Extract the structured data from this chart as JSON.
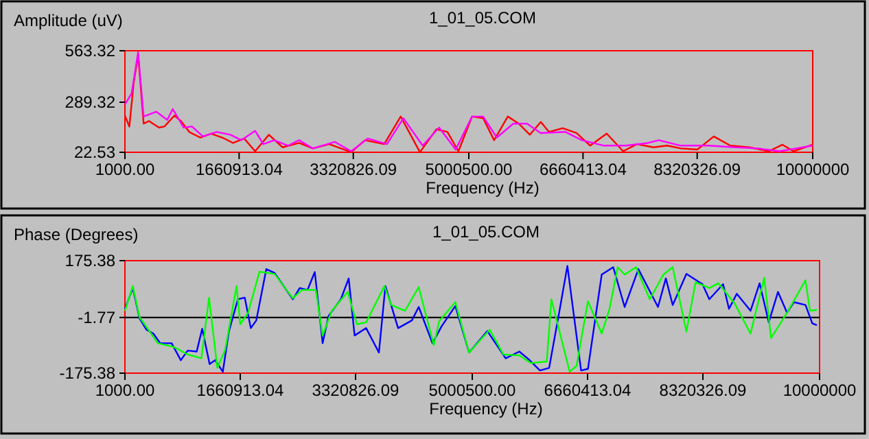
{
  "chart_data": [
    {
      "type": "line",
      "title": "1_01_05.COM",
      "xlabel": "Frequency (Hz)",
      "ylabel": "Amplitude (uV)",
      "xlim": [
        1000,
        10000000
      ],
      "xticks": [
        {
          "value": 1000,
          "label": "1000.00"
        },
        {
          "value": 1660913.04,
          "label": "1660913.04"
        },
        {
          "value": 3320826.09,
          "label": "3320826.09"
        },
        {
          "value": 5000500,
          "label": "5000500.00"
        },
        {
          "value": 6660413.04,
          "label": "6660413.04"
        },
        {
          "value": 8320326.09,
          "label": "8320326.09"
        },
        {
          "value": 10000000,
          "label": "10000000"
        }
      ],
      "ylim": [
        22.53,
        563.32
      ],
      "yticks": [
        22.53,
        289.32,
        563.32
      ],
      "grid": false,
      "marker": "none",
      "line_style": "solid",
      "series": [
        {
          "color": "#ff0000",
          "x": [
            1000,
            65000,
            129000,
            193000,
            273000,
            352000,
            496000,
            576000,
            720000,
            816000,
            935000,
            1095000,
            1255000,
            1415000,
            1574000,
            1734000,
            1894000,
            2093000,
            2293000,
            2533000,
            2732000,
            2972000,
            3291000,
            3491000,
            3770000,
            4010000,
            4290000,
            4529000,
            4689000,
            4849000,
            5048000,
            5208000,
            5368000,
            5567000,
            5727000,
            5887000,
            6047000,
            6166000,
            6366000,
            6566000,
            6765000,
            7005000,
            7244000,
            7444000,
            7684000,
            7883000,
            8083000,
            8322000,
            8562000,
            8802000,
            9081000,
            9361000,
            9560000,
            9720000,
            10000000
          ],
          "values": [
            218,
            159,
            394,
            540,
            175,
            189,
            154,
            160,
            218,
            189,
            131,
            101,
            122,
            101,
            72,
            96,
            28,
            116,
            49,
            72,
            43,
            66,
            23,
            87,
            66,
            213,
            23,
            145,
            131,
            28,
            213,
            204,
            87,
            213,
            175,
            116,
            184,
            131,
            151,
            125,
            58,
            122,
            28,
            66,
            49,
            58,
            43,
            37,
            107,
            58,
            49,
            28,
            63,
            28,
            63
          ]
        },
        {
          "color": "#ff00ff",
          "x": [
            1000,
            97000,
            193000,
            273000,
            456000,
            616000,
            696000,
            856000,
            975000,
            1135000,
            1335000,
            1534000,
            1694000,
            1894000,
            2013000,
            2173000,
            2373000,
            2533000,
            2732000,
            3052000,
            3291000,
            3531000,
            3810000,
            4050000,
            4329000,
            4569000,
            4809000,
            5048000,
            5208000,
            5408000,
            5647000,
            5847000,
            6046000,
            6406000,
            6645000,
            6965000,
            7284000,
            7604000,
            7763000,
            8083000,
            8482000,
            8881000,
            9201000,
            9520000,
            9760000,
            10000000
          ],
          "values": [
            277,
            335,
            555,
            213,
            239,
            195,
            253,
            154,
            160,
            107,
            131,
            116,
            87,
            137,
            66,
            87,
            58,
            87,
            43,
            78,
            28,
            96,
            66,
            204,
            58,
            154,
            37,
            213,
            213,
            101,
            175,
            175,
            125,
            131,
            87,
            58,
            58,
            72,
            87,
            58,
            58,
            49,
            43,
            28,
            43,
            58
          ]
        }
      ]
    },
    {
      "type": "line",
      "title": "1_01_05.COM",
      "xlabel": "Frequency (Hz)",
      "ylabel": "Phase (Degrees)",
      "xlim": [
        1000,
        10000000
      ],
      "xticks": [
        {
          "value": 1000,
          "label": "1000.00"
        },
        {
          "value": 1660913.04,
          "label": "1660913.04"
        },
        {
          "value": 3320826.09,
          "label": "3320826.09"
        },
        {
          "value": 5000500,
          "label": "5000500.00"
        },
        {
          "value": 6660413.04,
          "label": "6660413.04"
        },
        {
          "value": 8320326.09,
          "label": "8320326.09"
        },
        {
          "value": 10000000,
          "label": "10000000"
        }
      ],
      "ylim": [
        -175.38,
        175.38
      ],
      "yticks": [
        -175.38,
        -1.77,
        175.38
      ],
      "grid": false,
      "marker": "none",
      "line_style": "solid",
      "ref_lines": [
        {
          "axis": "y",
          "value": -1.77,
          "color": "#000000"
        }
      ],
      "series": [
        {
          "color": "#0000ff",
          "x": [
            1000,
            114000,
            212000,
            311000,
            410000,
            509000,
            673000,
            805000,
            904000,
            1034000,
            1113000,
            1220000,
            1299000,
            1410000,
            1497000,
            1627000,
            1726000,
            1813000,
            1892000,
            2036000,
            2155000,
            2418000,
            2517000,
            2629000,
            2734000,
            2847000,
            2932000,
            3109000,
            3222000,
            3307000,
            3473000,
            3657000,
            3750000,
            3933000,
            4131000,
            4230000,
            4428000,
            4560000,
            4757000,
            4955000,
            5218000,
            5481000,
            5678000,
            5811000,
            5975000,
            6107000,
            6251000,
            6370000,
            6567000,
            6666000,
            6864000,
            7030000,
            7194000,
            7392000,
            7674000,
            7787000,
            7886000,
            8083000,
            8314000,
            8413000,
            8611000,
            8696000,
            8808000,
            9006000,
            9137000,
            9269000,
            9401000,
            9532000,
            9631000,
            9797000,
            9895000,
            9961000
          ],
          "values": [
            25,
            90,
            -5,
            -40,
            -52,
            -82,
            -82,
            -135,
            -105,
            -108,
            -37,
            -147,
            -135,
            -171,
            -46,
            55,
            60,
            -35,
            -11,
            149,
            137,
            55,
            90,
            84,
            140,
            -82,
            3,
            55,
            120,
            -58,
            -35,
            -111,
            96,
            -35,
            -11,
            31,
            -82,
            -29,
            34,
            -111,
            -44,
            -129,
            -108,
            -132,
            -167,
            -159,
            13,
            159,
            -167,
            -162,
            132,
            155,
            31,
            149,
            31,
            120,
            37,
            134,
            102,
            55,
            102,
            25,
            72,
            19,
            105,
            -17,
            78,
            13,
            46,
            37,
            -20,
            -26
          ]
        },
        {
          "color": "#00ff00",
          "x": [
            1000,
            114000,
            212000,
            475000,
            706000,
            904000,
            1102000,
            1212000,
            1331000,
            1444000,
            1608000,
            1661000,
            1774000,
            1938000,
            2155000,
            2418000,
            2550000,
            2748000,
            2847000,
            2979000,
            3208000,
            3341000,
            3473000,
            3736000,
            3835000,
            4033000,
            4230000,
            4447000,
            4526000,
            4757000,
            4955000,
            5251000,
            5449000,
            5678000,
            5844000,
            6073000,
            6140000,
            6403000,
            6502000,
            6666000,
            6864000,
            6976000,
            7095000,
            7194000,
            7358000,
            7556000,
            7753000,
            7886000,
            8083000,
            8215000,
            8413000,
            8544000,
            8775000,
            9006000,
            9204000,
            9302000,
            9532000,
            9797000,
            9862000,
            9961000
          ],
          "values": [
            19,
            96,
            -1,
            -82,
            -94,
            -117,
            -129,
            60,
            -159,
            -103,
            96,
            -23,
            13,
            141,
            134,
            58,
            84,
            84,
            -58,
            19,
            78,
            -23,
            -17,
            96,
            37,
            19,
            93,
            -88,
            -13,
            46,
            -111,
            -40,
            -117,
            -120,
            -144,
            -139,
            55,
            -171,
            -153,
            49,
            -52,
            25,
            155,
            132,
            155,
            55,
            132,
            155,
            -46,
            108,
            90,
            105,
            43,
            -52,
            122,
            -66,
            13,
            114,
            19,
            22
          ]
        }
      ]
    }
  ]
}
